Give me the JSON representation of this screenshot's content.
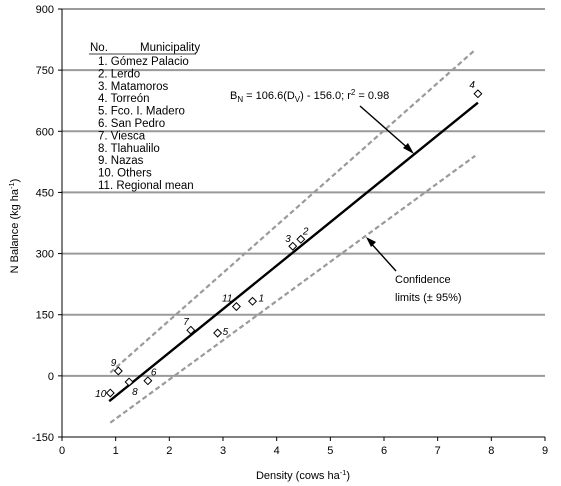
{
  "chart_data": {
    "type": "scatter",
    "xlabel": "Density (cows ha",
    "xlabel_sup": "-1",
    "xlabel_end": ")",
    "ylabel": "N Balance  (kg ha",
    "ylabel_sup": "-1",
    "ylabel_end": ")",
    "xlim": [
      0,
      9
    ],
    "ylim": [
      -150,
      900
    ],
    "x_ticks": [
      "0",
      "1",
      "2",
      "3",
      "4",
      "5",
      "6",
      "7",
      "8",
      "9"
    ],
    "y_ticks": [
      "-150",
      "0",
      "150",
      "300",
      "450",
      "600",
      "750",
      "900"
    ],
    "grid": "horizontal",
    "legend": {
      "header_no": "No.",
      "header_name": "Municipality",
      "items": [
        "1. Gómez Palacio",
        "2. Lerdo",
        "3. Matamoros",
        "4. Torreón",
        "5. Fco. I. Madero",
        "6. San Pedro",
        "7. Viesca",
        "8. Tlahualilo",
        "9. Nazas",
        "10. Others",
        "11. Regional mean"
      ]
    },
    "points": [
      {
        "label": "1",
        "x": 3.55,
        "y": 183
      },
      {
        "label": "2",
        "x": 4.45,
        "y": 335
      },
      {
        "label": "3",
        "x": 4.3,
        "y": 318
      },
      {
        "label": "4",
        "x": 7.75,
        "y": 692
      },
      {
        "label": "5",
        "x": 2.9,
        "y": 105
      },
      {
        "label": "6",
        "x": 1.6,
        "y": -12
      },
      {
        "label": "7",
        "x": 2.4,
        "y": 112
      },
      {
        "label": "8",
        "x": 1.25,
        "y": -15
      },
      {
        "label": "9",
        "x": 1.05,
        "y": 12
      },
      {
        "label": "10",
        "x": 0.9,
        "y": -42
      },
      {
        "label": "11",
        "x": 3.25,
        "y": 170
      }
    ],
    "regression": {
      "equation_b": "B",
      "equation_b_sub": "N",
      "equation_mid": " = 106.6(D",
      "equation_d_sub": "V",
      "equation_end": ") - 156.0;  r",
      "equation_r_sup": "2",
      "equation_tail": " = 0.98",
      "slope": 106.6,
      "intercept": -156.0,
      "r2": 0.98,
      "x_range": [
        0.88,
        7.75
      ]
    },
    "confidence": {
      "label_line1": "Confidence",
      "label_line2": "limits (± 95%)",
      "upper": {
        "x1": 0.9,
        "y1": 8,
        "x2": 7.7,
        "y2": 800
      },
      "lower": {
        "x1": 0.9,
        "y1": -115,
        "x2": 7.7,
        "y2": 540
      }
    }
  }
}
